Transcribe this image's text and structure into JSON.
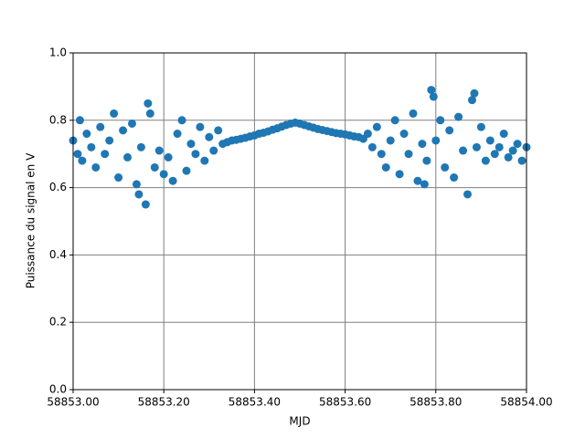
{
  "chart_data": {
    "type": "scatter",
    "xlabel": "MJD",
    "ylabel": "Puissance du signal en V",
    "color": "#1f77b4",
    "grid": true,
    "xlim": [
      58853,
      58854
    ],
    "xticks": [
      {
        "value": 58853,
        "label": "58853.00"
      },
      {
        "value": 58853.2,
        "label": "58853.20"
      },
      {
        "value": 58853.4,
        "label": "58853.40"
      },
      {
        "value": 58853.6,
        "label": "58853.60"
      },
      {
        "value": 58853.8,
        "label": "58853.80"
      },
      {
        "value": 58854,
        "label": "58854.00"
      }
    ],
    "ylim": [
      0,
      1
    ],
    "yticks": [
      {
        "value": 0,
        "label": "0.0"
      },
      0.2,
      0.4,
      0.6,
      0.8,
      {
        "value": 1,
        "label": "1.0"
      }
    ],
    "x": [
      58853.0,
      58853.01,
      58853.015,
      58853.02,
      58853.03,
      58853.04,
      58853.05,
      58853.06,
      58853.07,
      58853.08,
      58853.09,
      58853.1,
      58853.11,
      58853.12,
      58853.13,
      58853.14,
      58853.145,
      58853.15,
      58853.16,
      58853.165,
      58853.17,
      58853.18,
      58853.19,
      58853.2,
      58853.21,
      58853.22,
      58853.23,
      58853.24,
      58853.25,
      58853.26,
      58853.27,
      58853.28,
      58853.29,
      58853.3,
      58853.31,
      58853.32,
      58853.33,
      58853.34,
      58853.35,
      58853.36,
      58853.37,
      58853.38,
      58853.39,
      58853.4,
      58853.41,
      58853.42,
      58853.43,
      58853.44,
      58853.45,
      58853.46,
      58853.47,
      58853.48,
      58853.49,
      58853.5,
      58853.51,
      58853.52,
      58853.53,
      58853.54,
      58853.55,
      58853.56,
      58853.57,
      58853.58,
      58853.59,
      58853.6,
      58853.61,
      58853.62,
      58853.63,
      58853.64,
      58853.65,
      58853.66,
      58853.67,
      58853.68,
      58853.69,
      58853.7,
      58853.71,
      58853.72,
      58853.73,
      58853.74,
      58853.75,
      58853.76,
      58853.77,
      58853.775,
      58853.78,
      58853.79,
      58853.795,
      58853.8,
      58853.81,
      58853.82,
      58853.83,
      58853.84,
      58853.85,
      58853.86,
      58853.87,
      58853.88,
      58853.885,
      58853.89,
      58853.9,
      58853.91,
      58853.92,
      58853.93,
      58853.94,
      58853.95,
      58853.96,
      58853.97,
      58853.98,
      58853.99,
      58854.0
    ],
    "values": [
      0.74,
      0.7,
      0.8,
      0.68,
      0.76,
      0.72,
      0.66,
      0.78,
      0.7,
      0.74,
      0.82,
      0.63,
      0.77,
      0.69,
      0.79,
      0.61,
      0.58,
      0.72,
      0.55,
      0.85,
      0.82,
      0.66,
      0.71,
      0.64,
      0.69,
      0.62,
      0.76,
      0.8,
      0.65,
      0.73,
      0.7,
      0.78,
      0.68,
      0.75,
      0.71,
      0.77,
      0.73,
      0.735,
      0.74,
      0.742,
      0.745,
      0.748,
      0.752,
      0.755,
      0.76,
      0.763,
      0.767,
      0.772,
      0.776,
      0.781,
      0.786,
      0.79,
      0.793,
      0.79,
      0.786,
      0.782,
      0.778,
      0.774,
      0.771,
      0.768,
      0.765,
      0.762,
      0.76,
      0.758,
      0.755,
      0.752,
      0.75,
      0.745,
      0.76,
      0.72,
      0.78,
      0.7,
      0.66,
      0.74,
      0.8,
      0.64,
      0.76,
      0.7,
      0.82,
      0.62,
      0.73,
      0.61,
      0.68,
      0.89,
      0.87,
      0.74,
      0.8,
      0.66,
      0.77,
      0.63,
      0.81,
      0.71,
      0.58,
      0.86,
      0.88,
      0.72,
      0.78,
      0.68,
      0.74,
      0.7,
      0.72,
      0.76,
      0.69,
      0.71,
      0.73,
      0.68,
      0.72
    ]
  }
}
